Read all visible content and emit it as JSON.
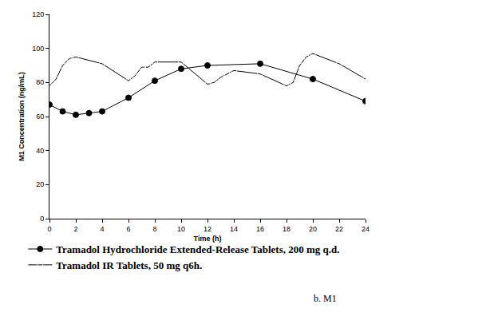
{
  "chart_data": {
    "type": "line",
    "x_label": "Time (h)",
    "y_label": "M1 Concentration (ng/mL)",
    "xlim": [
      0,
      24
    ],
    "xticks": [
      0,
      2,
      4,
      6,
      8,
      10,
      12,
      14,
      16,
      18,
      20,
      22,
      24
    ],
    "ylim": [
      0,
      120
    ],
    "yticks": [
      0,
      20,
      40,
      60,
      80,
      100,
      120
    ],
    "grid": false,
    "legend": "bottom",
    "annotations": [
      "b. M1"
    ],
    "series": [
      {
        "name": "Tramadol Hydrochloride Extended-Release Tablets, 200 mg q.d.",
        "color": "#000000",
        "marker": "circle",
        "line_style": "solid",
        "x": [
          0,
          1,
          2,
          3,
          4,
          6,
          8,
          10,
          12,
          16,
          20,
          24
        ],
        "values": [
          67,
          63,
          61,
          62,
          63,
          71,
          81,
          88,
          90,
          91,
          82,
          69
        ]
      },
      {
        "name": "Tramadol IR Tablets, 50 mg q6h.",
        "color": "#000000",
        "marker": "circle-open",
        "line_style": "solid",
        "x": [
          0,
          0.5,
          1,
          1.5,
          2,
          4,
          6,
          6.5,
          7,
          7.5,
          8,
          10,
          12,
          12.5,
          13,
          13.5,
          14,
          16,
          18,
          18.5,
          19,
          19.5,
          20,
          22,
          24
        ],
        "values": [
          78,
          82,
          90,
          94,
          95,
          91,
          81,
          84,
          89,
          89,
          92,
          92,
          79,
          80,
          83,
          85,
          87,
          85,
          78,
          80,
          90,
          95,
          97,
          91,
          82
        ]
      }
    ]
  }
}
